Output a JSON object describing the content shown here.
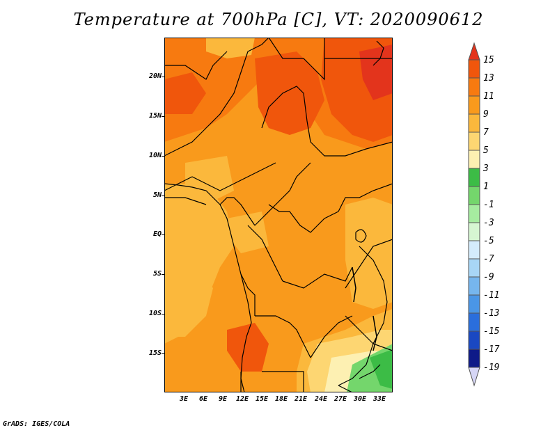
{
  "title": "Temperature at 700hPa [C], VT: 2020090612",
  "credit": "GrADS: IGES/COLA",
  "y_axis_labels": [
    "20N",
    "15N",
    "10N",
    "5N",
    "EQ",
    "5S",
    "10S",
    "15S"
  ],
  "x_axis_labels": [
    "3E",
    "6E",
    "9E",
    "12E",
    "15E",
    "18E",
    "21E",
    "24E",
    "27E",
    "30E",
    "33E"
  ],
  "colorbar": {
    "labels": [
      "15",
      "13",
      "11",
      "9",
      "7",
      "5",
      "3",
      "1",
      "-1",
      "-3",
      "-5",
      "-7",
      "-9",
      "-11",
      "-13",
      "-15",
      "-17",
      "-19"
    ],
    "colors": [
      "#e3341c",
      "#f0560c",
      "#f77a10",
      "#f99a1c",
      "#fbb83c",
      "#fdd672",
      "#fdf0b2",
      "#3cbc46",
      "#74d66c",
      "#a6eca0",
      "#d6f6d2",
      "#d4ecfc",
      "#a8d6f6",
      "#76b6ee",
      "#4a96e6",
      "#2a6edc",
      "#1a48c2",
      "#0e1a88",
      "#d6d6f6"
    ]
  }
}
